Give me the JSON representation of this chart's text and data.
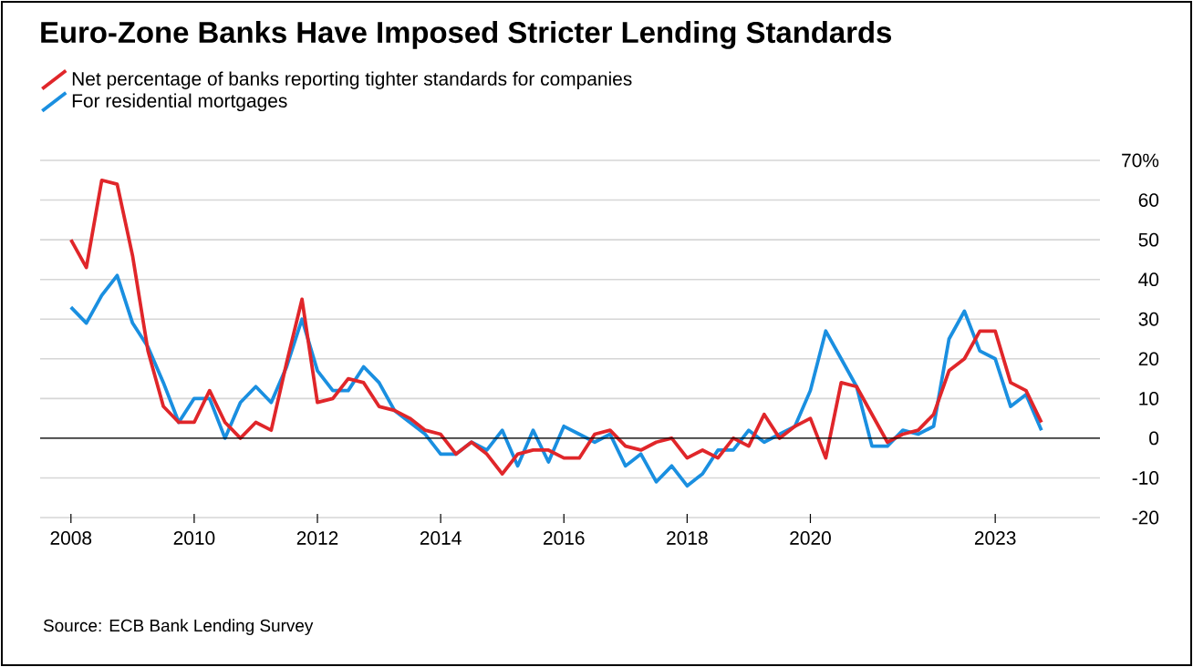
{
  "chart_data": {
    "type": "line",
    "title": "Euro-Zone Banks Have Imposed Stricter Lending Standards",
    "annotations": [
      "Source: ECB Bank Lending Survey"
    ],
    "x": [
      2008,
      2008.25,
      2008.5,
      2008.75,
      2009,
      2009.25,
      2009.5,
      2009.75,
      2010,
      2010.25,
      2010.5,
      2010.75,
      2011,
      2011.25,
      2011.5,
      2011.75,
      2012,
      2012.25,
      2012.5,
      2012.75,
      2013,
      2013.25,
      2013.5,
      2013.75,
      2014,
      2014.25,
      2014.5,
      2014.75,
      2015,
      2015.25,
      2015.5,
      2015.75,
      2016,
      2016.25,
      2016.5,
      2016.75,
      2017,
      2017.25,
      2017.5,
      2017.75,
      2018,
      2018.25,
      2018.5,
      2018.75,
      2019,
      2019.25,
      2019.5,
      2019.75,
      2020,
      2020.25,
      2020.5,
      2020.75,
      2021,
      2021.25,
      2021.5,
      2021.75,
      2022,
      2022.25,
      2022.5,
      2022.75,
      2023,
      2023.25,
      2023.5,
      2023.75
    ],
    "series": [
      {
        "name": "Net percentage of banks reporting tighter standards for companies",
        "color": "#e0262a",
        "values": [
          50,
          43,
          65,
          64,
          46,
          22,
          8,
          4,
          4,
          12,
          4,
          0,
          4,
          2,
          19,
          35,
          9,
          10,
          15,
          14,
          8,
          7,
          5,
          2,
          1,
          -4,
          -1,
          -4,
          -9,
          -4,
          -3,
          -3,
          -5,
          -5,
          1,
          2,
          -2,
          -3,
          -1,
          0,
          -5,
          -3,
          -5,
          0,
          -2,
          6,
          0,
          3,
          5,
          -5,
          14,
          13,
          6,
          -1,
          1,
          2,
          6,
          17,
          20,
          27,
          27,
          14,
          12,
          4
        ]
      },
      {
        "name": "For residential mortgages",
        "color": "#1a8fe0",
        "values": [
          33,
          29,
          36,
          41,
          29,
          23,
          14,
          4,
          10,
          10,
          0,
          9,
          13,
          9,
          18,
          30,
          17,
          12,
          12,
          18,
          14,
          7,
          4,
          1,
          -4,
          -4,
          -1,
          -3,
          2,
          -7,
          2,
          -6,
          3,
          1,
          -1,
          1,
          -7,
          -4,
          -11,
          -7,
          -12,
          -9,
          -3,
          -3,
          2,
          -1,
          1,
          3,
          12,
          27,
          20,
          13,
          -2,
          -2,
          2,
          1,
          3,
          25,
          32,
          22,
          20,
          8,
          11,
          2
        ]
      }
    ],
    "xlim": [
      2007.5,
      2024.7
    ],
    "ylim": [
      -20,
      70
    ],
    "xticks": [
      2008,
      2010,
      2012,
      2014,
      2016,
      2018,
      2020,
      2023
    ],
    "yticks": [
      {
        "value": 70,
        "label": "70%"
      },
      60,
      50,
      40,
      30,
      20,
      10,
      0,
      -10,
      -20
    ],
    "grid": "y",
    "legend": "top left",
    "marker": "none",
    "line_style": "solid",
    "ref_lines": [
      {
        "axis": "y",
        "value": 0,
        "color": "#000000"
      }
    ]
  }
}
